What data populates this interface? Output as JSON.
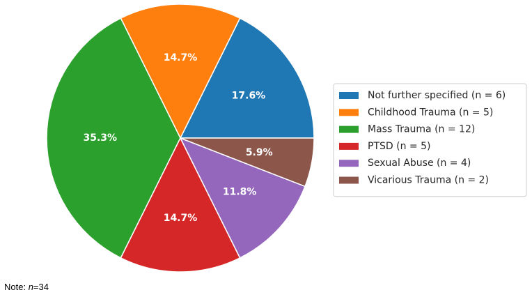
{
  "chart_data": {
    "type": "pie",
    "slices": [
      {
        "name": "Not further specified (n = 6)",
        "value": 6,
        "label": "17.6%",
        "color": "#1f77b4"
      },
      {
        "name": "Childhood Trauma (n = 5)",
        "value": 5,
        "label": "14.7%",
        "color": "#ff7f0e"
      },
      {
        "name": "Mass Trauma (n = 12)",
        "value": 12,
        "label": "35.3%",
        "color": "#2ca02c"
      },
      {
        "name": "PTSD (n = 5)",
        "value": 5,
        "label": "14.7%",
        "color": "#d62728"
      },
      {
        "name": "Sexual Abuse (n = 4)",
        "value": 4,
        "label": "11.8%",
        "color": "#9467bd"
      },
      {
        "name": "Vicarious Trauma (n = 2)",
        "value": 2,
        "label": "5.9%",
        "color": "#8c564b"
      }
    ],
    "legend_position": "right",
    "start_angle": 0,
    "direction": "counterclockwise"
  },
  "note": {
    "prefix": "Note: ",
    "italic": "n",
    "suffix": "=34"
  }
}
